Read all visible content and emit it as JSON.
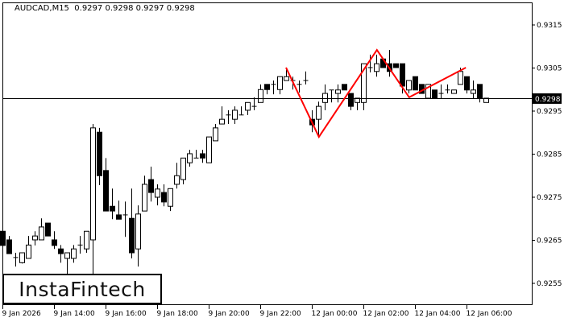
{
  "header": {
    "symbol": "AUDCAD,M15",
    "ohlc": "0.9297 0.9298 0.9297 0.9298"
  },
  "logo": {
    "text": "InstaFintech"
  },
  "colors": {
    "pattern_line": "#ff0000",
    "bull_body": "#ffffff",
    "bear_body": "#000000",
    "axis": "#000000",
    "current_price_bg": "#000000"
  },
  "chart_data": {
    "type": "candlestick",
    "timeframe": "M15",
    "y_ticks": [
      "0.9315",
      "0.9305",
      "0.9295",
      "0.9285",
      "0.9275",
      "0.9265",
      "0.9255"
    ],
    "ylim": [
      0.92505,
      0.93205
    ],
    "x_tick_labels": [
      "9 Jan 2026",
      "9 Jan 14:00",
      "9 Jan 16:00",
      "9 Jan 18:00",
      "9 Jan 20:00",
      "9 Jan 22:00",
      "12 Jan 00:00",
      "12 Jan 02:00",
      "12 Jan 04:00",
      "12 Jan 06:00"
    ],
    "candles_per_x_tick": 8,
    "current_price": "0.9298",
    "candles_ohlc": [
      [
        0.92671,
        0.92675,
        0.92632,
        0.92638
      ],
      [
        0.92651,
        0.9266,
        0.92619,
        0.92619
      ],
      [
        0.9261,
        0.92621,
        0.92589,
        0.9261
      ],
      [
        0.92598,
        0.92621,
        0.92596,
        0.92621
      ],
      [
        0.92608,
        0.9266,
        0.92608,
        0.92639
      ],
      [
        0.92651,
        0.92671,
        0.92638,
        0.9266
      ],
      [
        0.92651,
        0.92701,
        0.92651,
        0.92681
      ],
      [
        0.9269,
        0.9269,
        0.9266,
        0.9266
      ],
      [
        0.92651,
        0.92671,
        0.9263,
        0.92638
      ],
      [
        0.9263,
        0.92639,
        0.92598,
        0.92619
      ],
      [
        0.92608,
        0.92621,
        0.92572,
        0.92621
      ],
      [
        0.92608,
        0.92639,
        0.92598,
        0.9263
      ],
      [
        0.92639,
        0.9266,
        0.92619,
        0.92639
      ],
      [
        0.9263,
        0.92671,
        0.92621,
        0.92671
      ],
      [
        0.92651,
        0.9292,
        0.92563,
        0.92911
      ],
      [
        0.92901,
        0.92911,
        0.92778,
        0.928
      ],
      [
        0.92812,
        0.92841,
        0.92718,
        0.92718
      ],
      [
        0.92729,
        0.9277,
        0.92699,
        0.92718
      ],
      [
        0.92709,
        0.92742,
        0.92699,
        0.92699
      ],
      [
        0.92709,
        0.9274,
        0.92658,
        0.92709
      ],
      [
        0.92701,
        0.9277,
        0.92608,
        0.92621
      ],
      [
        0.9263,
        0.92731,
        0.92589,
        0.92711
      ],
      [
        0.92718,
        0.928,
        0.92718,
        0.9278
      ],
      [
        0.92791,
        0.92821,
        0.9274,
        0.92761
      ],
      [
        0.9275,
        0.9278,
        0.92731,
        0.92769
      ],
      [
        0.92761,
        0.9278,
        0.92729,
        0.92739
      ],
      [
        0.92729,
        0.9277,
        0.92718,
        0.9277
      ],
      [
        0.9278,
        0.9283,
        0.9277,
        0.928
      ],
      [
        0.92791,
        0.92841,
        0.9278,
        0.92841
      ],
      [
        0.9283,
        0.9286,
        0.92821,
        0.92851
      ],
      [
        0.92841,
        0.9286,
        0.92841,
        0.92841
      ],
      [
        0.92851,
        0.9286,
        0.9283,
        0.92841
      ],
      [
        0.9283,
        0.9289,
        0.9283,
        0.9289
      ],
      [
        0.92881,
        0.9292,
        0.92881,
        0.92911
      ],
      [
        0.9292,
        0.92961,
        0.9292,
        0.92931
      ],
      [
        0.92941,
        0.92952,
        0.9292,
        0.92941
      ],
      [
        0.92931,
        0.92961,
        0.9292,
        0.92952
      ],
      [
        0.92941,
        0.92961,
        0.92941,
        0.92941
      ],
      [
        0.92952,
        0.9297,
        0.92941,
        0.9297
      ],
      [
        0.92961,
        0.92982,
        0.92952,
        0.92961
      ],
      [
        0.9297,
        0.93012,
        0.9297,
        0.93
      ],
      [
        0.93012,
        0.93012,
        0.92989,
        0.93
      ],
      [
        0.93012,
        0.93021,
        0.92989,
        0.93012
      ],
      [
        0.93,
        0.9303,
        0.92989,
        0.9303
      ],
      [
        0.93021,
        0.93051,
        0.93021,
        0.9303
      ],
      [
        0.93021,
        0.9303,
        0.93,
        0.93021
      ],
      [
        0.93012,
        0.93021,
        0.92993,
        0.93012
      ],
      [
        0.93021,
        0.93042,
        0.93012,
        0.93021
      ],
      [
        0.92931,
        0.92952,
        0.92901,
        0.92918
      ],
      [
        0.92931,
        0.92972,
        0.92894,
        0.92961
      ],
      [
        0.9297,
        0.93012,
        0.92952,
        0.92991
      ],
      [
        0.92999,
        0.92999,
        0.9297,
        0.92999
      ],
      [
        0.92991,
        0.93012,
        0.9297,
        0.92999
      ],
      [
        0.93012,
        0.93012,
        0.92999,
        0.92999
      ],
      [
        0.92991,
        0.92991,
        0.92952,
        0.92961
      ],
      [
        0.9297,
        0.9298,
        0.92952,
        0.9298
      ],
      [
        0.9297,
        0.9306,
        0.92952,
        0.9306
      ],
      [
        0.93051,
        0.93081,
        0.9304,
        0.93051
      ],
      [
        0.93042,
        0.93081,
        0.9303,
        0.9306
      ],
      [
        0.93071,
        0.93071,
        0.93051,
        0.93051
      ],
      [
        0.9306,
        0.93092,
        0.9303,
        0.93042
      ],
      [
        0.9306,
        0.9306,
        0.93051,
        0.93051
      ],
      [
        0.9306,
        0.9306,
        0.92991,
        0.93008
      ],
      [
        0.92999,
        0.93021,
        0.92991,
        0.93021
      ],
      [
        0.9303,
        0.9303,
        0.92999,
        0.92999
      ],
      [
        0.93012,
        0.93012,
        0.92991,
        0.92991
      ],
      [
        0.9298,
        0.93012,
        0.9298,
        0.93012
      ],
      [
        0.92999,
        0.92999,
        0.9298,
        0.9298
      ],
      [
        0.92991,
        0.93012,
        0.9298,
        0.92991
      ],
      [
        0.92999,
        0.93012,
        0.92991,
        0.92999
      ],
      [
        0.92991,
        0.92999,
        0.92991,
        0.92999
      ],
      [
        0.93012,
        0.93051,
        0.93012,
        0.93042
      ],
      [
        0.9303,
        0.9303,
        0.92991,
        0.92999
      ],
      [
        0.92991,
        0.93021,
        0.9298,
        0.92999
      ],
      [
        0.93012,
        0.93012,
        0.9297,
        0.9298
      ],
      [
        0.9297,
        0.9298,
        0.9297,
        0.9298
      ]
    ],
    "pattern_line": {
      "points_candle_index_price": [
        [
          44,
          0.93051
        ],
        [
          49.1,
          0.9289
        ],
        [
          58.1,
          0.93092
        ],
        [
          63.1,
          0.92982
        ],
        [
          71.9,
          0.93051
        ]
      ]
    }
  }
}
